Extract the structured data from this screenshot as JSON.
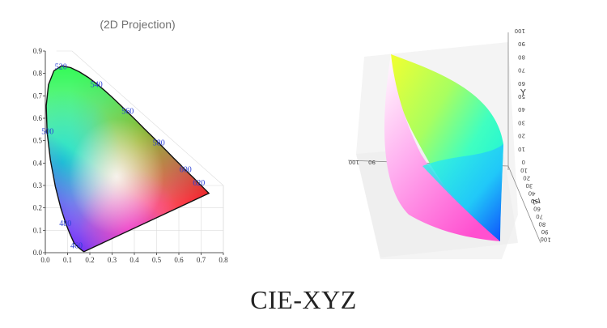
{
  "subtitle": "(2D Projection)",
  "title": "CIE-XYZ",
  "chart_data": {
    "type": "scatter",
    "xlim": [
      0.0,
      0.8
    ],
    "ylim": [
      0.0,
      0.9
    ],
    "x_ticks": [
      "0.0",
      "0.1",
      "0.2",
      "0.3",
      "0.4",
      "0.5",
      "0.6",
      "0.7",
      "0.8"
    ],
    "y_ticks": [
      "0.0",
      "0.1",
      "0.2",
      "0.3",
      "0.4",
      "0.5",
      "0.6",
      "0.7",
      "0.8",
      "0.9"
    ],
    "wavelength_labels": [
      {
        "text": "460",
        "x": 0.14,
        "y": 0.03
      },
      {
        "text": "480",
        "x": 0.09,
        "y": 0.13
      },
      {
        "text": "500",
        "x": 0.01,
        "y": 0.54
      },
      {
        "text": "520",
        "x": 0.07,
        "y": 0.83
      },
      {
        "text": "540",
        "x": 0.23,
        "y": 0.75
      },
      {
        "text": "560",
        "x": 0.37,
        "y": 0.63
      },
      {
        "text": "580",
        "x": 0.51,
        "y": 0.49
      },
      {
        "text": "600",
        "x": 0.63,
        "y": 0.37
      },
      {
        "text": "620",
        "x": 0.69,
        "y": 0.31
      }
    ],
    "locus": [
      [
        0.175,
        0.005
      ],
      [
        0.172,
        0.005
      ],
      [
        0.165,
        0.01
      ],
      [
        0.15,
        0.022
      ],
      [
        0.129,
        0.043
      ],
      [
        0.109,
        0.087
      ],
      [
        0.091,
        0.133
      ],
      [
        0.069,
        0.201
      ],
      [
        0.045,
        0.295
      ],
      [
        0.023,
        0.413
      ],
      [
        0.008,
        0.538
      ],
      [
        0.004,
        0.655
      ],
      [
        0.014,
        0.75
      ],
      [
        0.039,
        0.812
      ],
      [
        0.074,
        0.834
      ],
      [
        0.114,
        0.826
      ],
      [
        0.155,
        0.806
      ],
      [
        0.193,
        0.782
      ],
      [
        0.23,
        0.754
      ],
      [
        0.266,
        0.724
      ],
      [
        0.302,
        0.692
      ],
      [
        0.337,
        0.659
      ],
      [
        0.373,
        0.624
      ],
      [
        0.409,
        0.589
      ],
      [
        0.444,
        0.554
      ],
      [
        0.479,
        0.52
      ],
      [
        0.512,
        0.487
      ],
      [
        0.545,
        0.454
      ],
      [
        0.575,
        0.424
      ],
      [
        0.603,
        0.396
      ],
      [
        0.627,
        0.372
      ],
      [
        0.648,
        0.351
      ],
      [
        0.666,
        0.334
      ],
      [
        0.68,
        0.32
      ],
      [
        0.691,
        0.308
      ],
      [
        0.701,
        0.299
      ],
      [
        0.735,
        0.265
      ]
    ]
  },
  "axes3d": {
    "y_label": "Y",
    "z_label": "Z",
    "y_ticks": [
      "100",
      "90",
      "80",
      "70",
      "60",
      "50",
      "40",
      "30",
      "20",
      "10",
      "0"
    ],
    "z_ticks": [
      "10",
      "20",
      "30",
      "40",
      "50",
      "60",
      "70",
      "80",
      "90",
      "100"
    ],
    "x_ticks": [
      "100",
      "90"
    ]
  }
}
